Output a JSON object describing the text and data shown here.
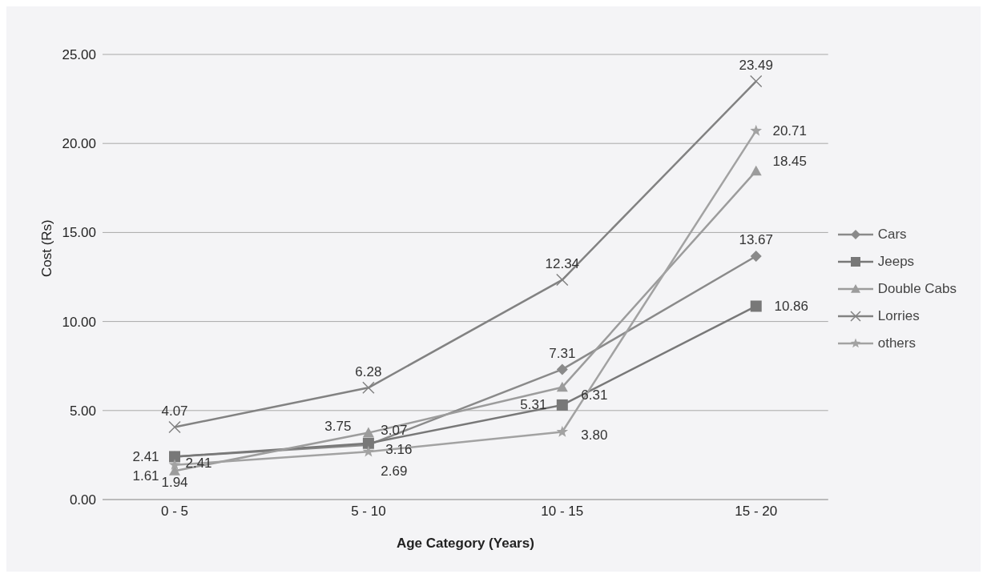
{
  "chart_data": {
    "type": "line",
    "xlabel": "Age Category (Years)",
    "ylabel": "Cost  (Rs)",
    "categories": [
      "0 - 5",
      "5 - 10",
      "10 - 15",
      "15 - 20"
    ],
    "series": [
      {
        "name": "Cars",
        "color": "#8a8a8a",
        "marker": "diamond",
        "values": [
          2.41,
          3.07,
          7.31,
          13.67
        ],
        "value_labels": [
          "2.41",
          "3.07",
          "7.31",
          "13.67"
        ]
      },
      {
        "name": "Jeeps",
        "color": "#787878",
        "marker": "square",
        "values": [
          2.41,
          3.16,
          5.31,
          10.86
        ],
        "value_labels": [
          "2.41",
          "3.16",
          "5.31",
          "10.86"
        ]
      },
      {
        "name": "Double Cabs",
        "color": "#9c9c9c",
        "marker": "triangle",
        "values": [
          1.61,
          3.75,
          6.31,
          18.45
        ],
        "value_labels": [
          "1.61",
          "3.75",
          "6.31",
          "18.45"
        ]
      },
      {
        "name": "Lorries",
        "color": "#828282",
        "marker": "cross",
        "values": [
          4.07,
          6.28,
          12.34,
          23.49
        ],
        "value_labels": [
          "4.07",
          "6.28",
          "12.34",
          "23.49"
        ]
      },
      {
        "name": "others",
        "color": "#a2a2a2",
        "marker": "star",
        "values": [
          1.94,
          2.69,
          3.8,
          20.71
        ],
        "value_labels": [
          "1.94",
          "2.69",
          "3.80",
          "20.71"
        ]
      }
    ],
    "ylim": [
      0,
      25
    ],
    "yticks": [
      {
        "value": 0,
        "label": "0.00"
      },
      {
        "value": 5,
        "label": "5.00"
      },
      {
        "value": 10,
        "label": "10.00"
      },
      {
        "value": 15,
        "label": "15.00"
      },
      {
        "value": 20,
        "label": "20.00"
      },
      {
        "value": 25,
        "label": "25.00"
      }
    ],
    "grid": "y",
    "legend": "right",
    "line_style": "solid"
  }
}
